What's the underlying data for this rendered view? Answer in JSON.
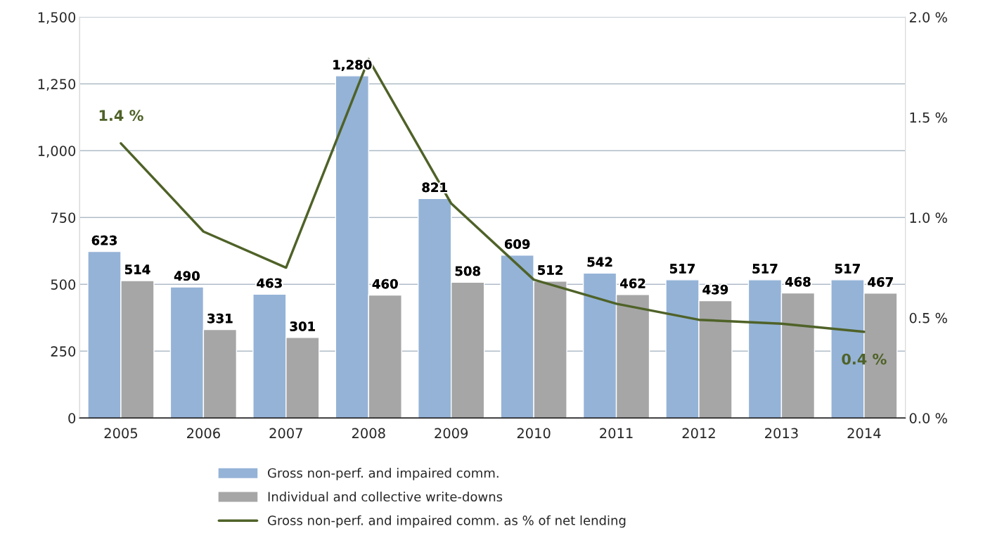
{
  "chart_data": {
    "type": "bar",
    "categories": [
      "2005",
      "2006",
      "2007",
      "2008",
      "2009",
      "2010",
      "2011",
      "2012",
      "2013",
      "2014"
    ],
    "series": [
      {
        "name": "Gross non-perf. and impaired comm.",
        "color": "#95b3d7",
        "values": [
          623,
          490,
          463,
          1280,
          821,
          609,
          542,
          517,
          517,
          517
        ],
        "value_labels": [
          "623",
          "490",
          "463",
          "1,280",
          "821",
          "609",
          "542",
          "517",
          "517",
          "517"
        ]
      },
      {
        "name": "Individual and collective write-downs",
        "color": "#a6a6a6",
        "values": [
          514,
          331,
          301,
          460,
          508,
          512,
          462,
          439,
          468,
          467
        ],
        "value_labels": [
          "514",
          "331",
          "301",
          "460",
          "508",
          "512",
          "462",
          "439",
          "468",
          "467"
        ]
      },
      {
        "name": "Gross non-perf. and impaired comm. as % of net lending",
        "type": "line",
        "axis": "y2",
        "color": "#4f6228",
        "values": [
          1.37,
          0.93,
          0.75,
          1.79,
          1.07,
          0.69,
          0.57,
          0.49,
          0.47,
          0.43
        ],
        "value_labels": [
          "1.4 %",
          null,
          null,
          null,
          null,
          null,
          null,
          null,
          null,
          "0.4 %"
        ]
      }
    ],
    "ylim": [
      0,
      1500
    ],
    "yticks": [
      0,
      250,
      500,
      750,
      {
        "value": 1000,
        "label": "1,000"
      },
      {
        "value": 1250,
        "label": "1,250"
      },
      {
        "value": 1500,
        "label": "1,500"
      }
    ],
    "y2lim": [
      0,
      2.0
    ],
    "y2ticks": [
      {
        "value": 0,
        "label": "0.0 %"
      },
      {
        "value": 0.5,
        "label": "0.5 %"
      },
      {
        "value": 1.0,
        "label": "1.0 %"
      },
      {
        "value": 1.5,
        "label": "1.5 %"
      },
      {
        "value": 2.0,
        "label": "2.0 %"
      }
    ],
    "grid": "y",
    "legend": "bottom",
    "line_style": "solid",
    "marker": "none"
  }
}
